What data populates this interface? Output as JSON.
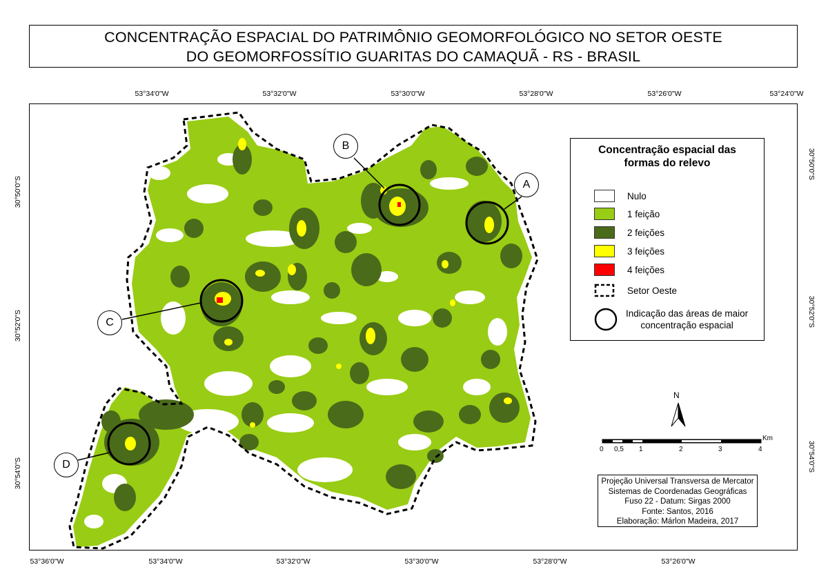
{
  "title": {
    "line1": "CONCENTRAÇÃO ESPACIAL DO PATRIMÔNIO GEOMORFOLÓGICO NO SETOR OESTE",
    "line2": "DO GEOMORFOSSÍTIO GUARITAS DO CAMAQUÃ - RS - BRASIL"
  },
  "coords": {
    "top": [
      "53°34'0\"W",
      "53°32'0\"W",
      "53°30'0\"W",
      "53°28'0\"W",
      "53°26'0\"W",
      "53°24'0\"W"
    ],
    "bottom": [
      "53°36'0\"W",
      "53°34'0\"W",
      "53°32'0\"W",
      "53°30'0\"W",
      "53°28'0\"W",
      "53°26'0\"W"
    ],
    "left": [
      "30°50'0\"S",
      "30°52'0\"S",
      "30°54'0\"S"
    ],
    "right": [
      "30°50'0\"S",
      "30°52'0\"S",
      "30°54'0\"S"
    ]
  },
  "legend": {
    "title_line1": "Concentração espacial das",
    "title_line2": "formas do relevo",
    "items": [
      {
        "label": "Nulo",
        "color": "#ffffff"
      },
      {
        "label": "1 feição",
        "color": "#99cc14"
      },
      {
        "label": "2 feições",
        "color": "#4a6b1a"
      },
      {
        "label": "3 feições",
        "color": "#ffff00"
      },
      {
        "label": "4 feições",
        "color": "#ff0000"
      }
    ],
    "sector_label": "Setor Oeste",
    "circle_label_line1": "Indicação das áreas de maior",
    "circle_label_line2": "concentração espacial"
  },
  "callouts": [
    "A",
    "B",
    "C",
    "D"
  ],
  "north": {
    "label": "N"
  },
  "scale": {
    "unit": "Km",
    "labels": [
      "0",
      "0,5",
      "1",
      "2",
      "3",
      "4"
    ]
  },
  "credits": [
    "Projeção Universal Transversa de Mercator",
    "Sistemas de Coordenadas Geográficas",
    "Fuso 22 - Datum: Sirgas 2000",
    "Fonte: Santos, 2016",
    "Elaboração: Márlon Madeira, 2017"
  ],
  "colors": {
    "one": "#99cc14",
    "two": "#4a6b1a",
    "three": "#ffff00",
    "four": "#ff0000"
  }
}
